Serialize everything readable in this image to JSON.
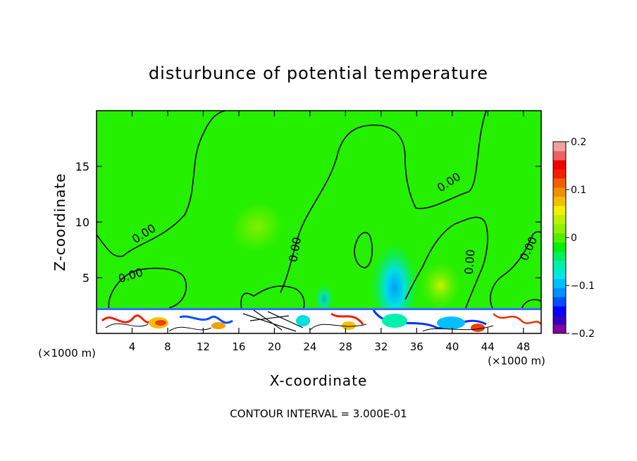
{
  "chart_data": {
    "type": "heatmap",
    "title": "disturbunce of potential temperature",
    "xlabel": "X-coordinate",
    "ylabel": "Z-coordinate",
    "x_unit_left": "(×1000 m)",
    "x_unit_right": "(×1000 m)",
    "xlim": [
      0,
      50
    ],
    "ylim": [
      0,
      20
    ],
    "x_ticks": [
      4,
      8,
      12,
      16,
      20,
      24,
      28,
      32,
      36,
      40,
      44,
      48
    ],
    "y_ticks": [
      5,
      10,
      15
    ],
    "zero_contour_labels": [
      "0.00",
      "0.00",
      "0.00",
      "0.00",
      "0.00",
      "0.00"
    ],
    "colorbar": {
      "range": [
        -0.2,
        0.2
      ],
      "labels": [
        "0.2",
        "0.1",
        "0",
        "−0.1",
        "−0.2"
      ],
      "label_values": [
        0.2,
        0.1,
        0,
        -0.1,
        -0.2
      ],
      "colors": [
        "#8000a0",
        "#3000c0",
        "#0000ff",
        "#0050ff",
        "#0090ff",
        "#00c0ff",
        "#00e8e0",
        "#00f0b0",
        "#00f060",
        "#00f000",
        "#50f000",
        "#90f000",
        "#c0f000",
        "#f0f000",
        "#f0c000",
        "#f09000",
        "#f06000",
        "#f02000",
        "#f00000",
        "#f06060",
        "#f0a0a0"
      ]
    },
    "footer": "CONTOUR INTERVAL = 3.000E-01"
  },
  "colors": {
    "background": "#24f000",
    "contour": "#000000"
  }
}
